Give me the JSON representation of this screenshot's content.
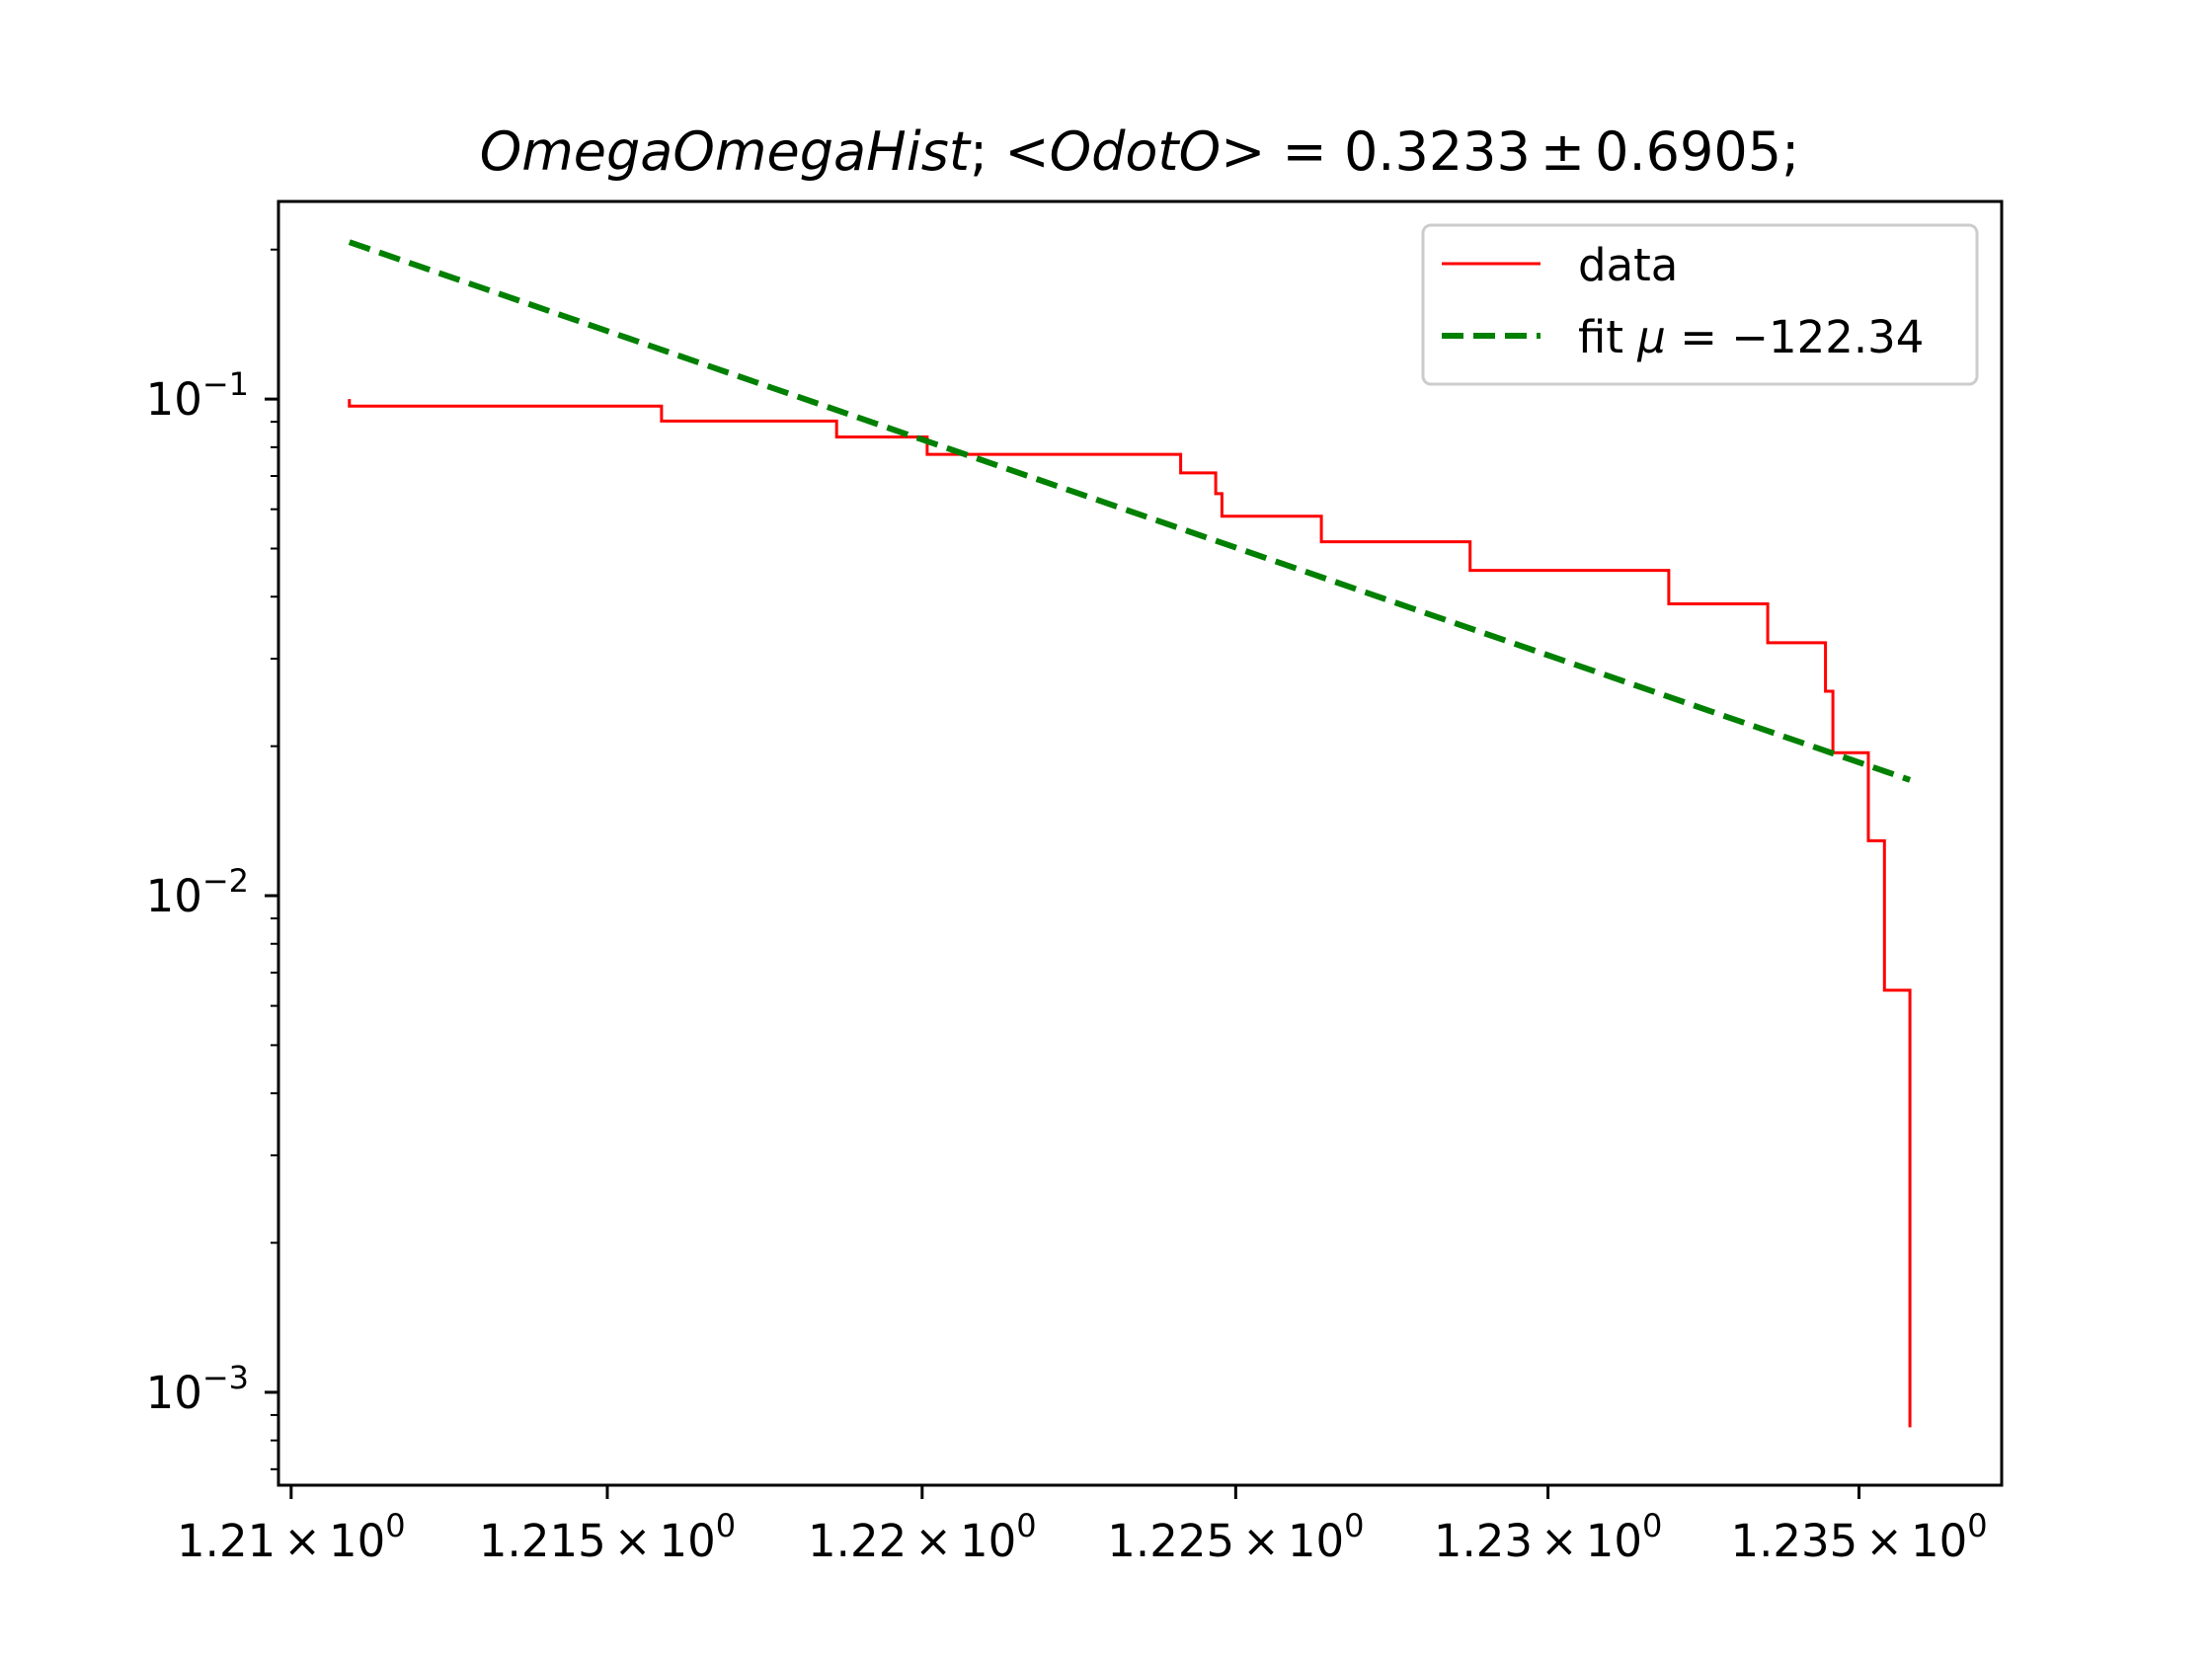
{
  "chart_data": {
    "type": "line",
    "title": {
      "name": "OmegaOmegaHist",
      "sep": "; ",
      "mean_label": "<OdotO>",
      "mean": "0.3233",
      "pm": "±",
      "err": "0.6905",
      "end": ";"
    },
    "xlabel": "",
    "ylabel": "",
    "x_scale": "log",
    "y_scale": "log",
    "xlim": [
      1.2098,
      1.2373
    ],
    "ylim": [
      0.00065,
      0.25
    ],
    "x_ticks": [
      {
        "value": 1.21,
        "mantissa": "1.21",
        "times": "×",
        "base": "10",
        "exp": "0"
      },
      {
        "value": 1.215,
        "mantissa": "1.215",
        "times": "×",
        "base": "10",
        "exp": "0"
      },
      {
        "value": 1.22,
        "mantissa": "1.22",
        "times": "×",
        "base": "10",
        "exp": "0"
      },
      {
        "value": 1.225,
        "mantissa": "1.225",
        "times": "×",
        "base": "10",
        "exp": "0"
      },
      {
        "value": 1.23,
        "mantissa": "1.23",
        "times": "×",
        "base": "10",
        "exp": "0"
      },
      {
        "value": 1.235,
        "mantissa": "1.235",
        "times": "×",
        "base": "10",
        "exp": "0"
      }
    ],
    "y_ticks": [
      {
        "value": 0.1,
        "base": "10",
        "exp": "−1"
      },
      {
        "value": 0.01,
        "base": "10",
        "exp": "−2"
      },
      {
        "value": 0.001,
        "base": "10",
        "exp": "−3"
      }
    ],
    "y_minor_ticks": [
      0.0007,
      0.0008,
      0.0009,
      0.002,
      0.003,
      0.004,
      0.005,
      0.006,
      0.007,
      0.008,
      0.009,
      0.02,
      0.03,
      0.04,
      0.05,
      0.06,
      0.07,
      0.08,
      0.09,
      0.2
    ],
    "legend": {
      "placement": "top-right",
      "entries": [
        {
          "label": "data"
        },
        {
          "label_prefix": "fit ",
          "mu": "μ",
          "eq": " = ",
          "value": "−122.34"
        }
      ]
    },
    "series": [
      {
        "name": "data",
        "color": "#ff0000",
        "style": "step",
        "x": [
          1.21092,
          1.21092,
          1.21586,
          1.21586,
          1.21864,
          1.21864,
          1.22008,
          1.22008,
          1.22412,
          1.22412,
          1.22468,
          1.22468,
          1.22478,
          1.22478,
          1.22637,
          1.22637,
          1.22875,
          1.22875,
          1.23194,
          1.23194,
          1.23353,
          1.23353,
          1.23446,
          1.23446,
          1.23458,
          1.23458,
          1.23515,
          1.23515,
          1.23541,
          1.23541,
          1.23582,
          1.23582
        ],
        "y": [
          0.1,
          0.0968,
          0.0968,
          0.0903,
          0.0903,
          0.0839,
          0.0839,
          0.0774,
          0.0774,
          0.071,
          0.071,
          0.0645,
          0.0645,
          0.0581,
          0.0581,
          0.0516,
          0.0516,
          0.0452,
          0.0452,
          0.0387,
          0.0387,
          0.0323,
          0.0323,
          0.0258,
          0.0258,
          0.0194,
          0.0194,
          0.0129,
          0.0129,
          0.00645,
          0.00645,
          0.00085
        ]
      },
      {
        "name": "fit",
        "color": "#008000",
        "style": "dashed",
        "x": [
          1.21092,
          1.23582
        ],
        "y": [
          0.207,
          0.0171
        ]
      }
    ],
    "grid": false
  }
}
